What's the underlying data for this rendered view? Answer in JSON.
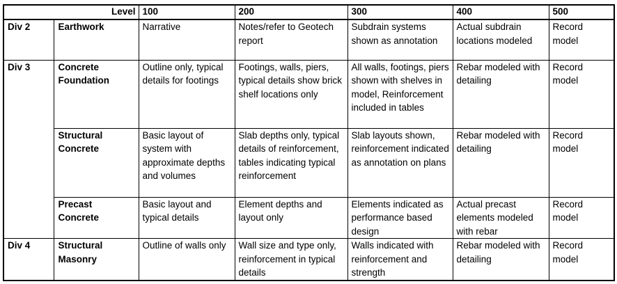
{
  "table": {
    "level_label": "Level",
    "levels": [
      "100",
      "200",
      "300",
      "400",
      "500"
    ],
    "rows": [
      {
        "div": "Div 2",
        "category": "Earthwork",
        "cells": [
          "Narrative",
          "Notes/refer to Geotech report",
          "Subdrain systems shown as annotation",
          "Actual subdrain locations modeled",
          "Record model"
        ]
      },
      {
        "div": "Div 3",
        "category": "Concrete Foundation",
        "cells": [
          "Outline only, typical details for footings",
          "Footings, walls, piers, typical details show brick shelf locations only",
          "All walls, footings, piers shown with shelves in model, Reinforcement included in tables",
          "Rebar modeled with detailing",
          "Record model"
        ]
      },
      {
        "div": "",
        "category": "Structural Concrete",
        "cells": [
          "Basic layout of system with approximate depths and volumes",
          "Slab depths only, typical details of reinforcement, tables indicating typical reinforcement",
          "Slab layouts shown, reinforcement indicated as annotation on plans",
          "Rebar modeled with detailing",
          "Record model"
        ]
      },
      {
        "div": "",
        "category": "Precast Concrete",
        "cells": [
          "Basic layout and typical details",
          "Element depths and layout only",
          "Elements indicated as performance based design",
          "Actual precast elements modeled with rebar",
          "Record model"
        ]
      },
      {
        "div": "Div 4",
        "category": "Structural Masonry",
        "cells": [
          "Outline of walls only",
          "Wall size and type only, reinforcement in typical details",
          "Walls indicated with reinforcement and strength",
          "Rebar modeled with detailing",
          "Record model"
        ]
      }
    ]
  }
}
